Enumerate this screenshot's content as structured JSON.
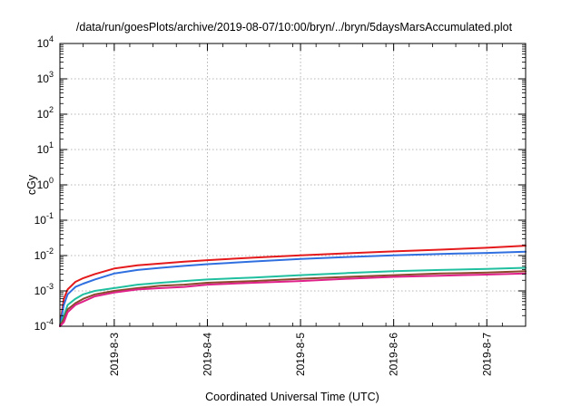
{
  "chart_data": {
    "type": "line",
    "title": "/data/run/goesPlots/archive/2019-08-07/10:00/bryn/../bryn/5daysMarsAccumulated.plot",
    "xlabel": "Coordinated Universal Time (UTC)",
    "ylabel": "cGy",
    "y_scale": "log",
    "ylim": [
      0.0001,
      10000
    ],
    "xlim": [
      "2019-08-02 10:00",
      "2019-08-07 10:00"
    ],
    "grid": true,
    "legend": "none",
    "x_ticks": [
      "2019-8-3",
      "2019-8-4",
      "2019-8-5",
      "2019-8-6",
      "2019-8-7"
    ],
    "y_ticks": [
      {
        "base": "10",
        "exp": "-4",
        "value": 0.0001
      },
      {
        "base": "10",
        "exp": "-3",
        "value": 0.001
      },
      {
        "base": "10",
        "exp": "-2",
        "value": 0.01
      },
      {
        "base": "10",
        "exp": "-1",
        "value": 0.1
      },
      {
        "base": "10",
        "exp": "0",
        "value": 1
      },
      {
        "base": "10",
        "exp": "1",
        "value": 10
      },
      {
        "base": "10",
        "exp": "2",
        "value": 100
      },
      {
        "base": "10",
        "exp": "3",
        "value": 1000
      },
      {
        "base": "10",
        "exp": "4",
        "value": 10000
      }
    ],
    "x": [
      "2019-08-02 10:00",
      "2019-08-02 11:00",
      "2019-08-02 12:00",
      "2019-08-02 14:00",
      "2019-08-02 16:00",
      "2019-08-02 19:00",
      "2019-08-03 00:00",
      "2019-08-03 06:00",
      "2019-08-03 12:00",
      "2019-08-03 18:00",
      "2019-08-04 00:00",
      "2019-08-04 12:00",
      "2019-08-05 00:00",
      "2019-08-05 12:00",
      "2019-08-06 00:00",
      "2019-08-06 12:00",
      "2019-08-07 00:00",
      "2019-08-07 10:00"
    ],
    "series": [
      {
        "color": "#e41a1c",
        "values": [
          0.0001,
          0.0006,
          0.0011,
          0.0018,
          0.0023,
          0.003,
          0.0043,
          0.0053,
          0.006,
          0.0067,
          0.0074,
          0.0088,
          0.0102,
          0.0116,
          0.0131,
          0.0147,
          0.0166,
          0.019
        ]
      },
      {
        "color": "#2f6fe0",
        "values": [
          0.0001,
          0.0004,
          0.0008,
          0.0013,
          0.0016,
          0.0021,
          0.0031,
          0.0039,
          0.0045,
          0.0051,
          0.0057,
          0.0068,
          0.008,
          0.0091,
          0.0102,
          0.0111,
          0.0119,
          0.0128
        ]
      },
      {
        "color": "#1fbf9f",
        "values": [
          0.0001,
          0.0002,
          0.0004,
          0.0006,
          0.0008,
          0.001,
          0.0012,
          0.0015,
          0.0017,
          0.0019,
          0.0021,
          0.0024,
          0.0028,
          0.0032,
          0.0036,
          0.0039,
          0.0042,
          0.0045
        ]
      },
      {
        "color": "#8b4a2b",
        "values": [
          0.0001,
          0.00016,
          0.0003,
          0.00045,
          0.0006,
          0.0008,
          0.001,
          0.0012,
          0.0014,
          0.0015,
          0.0017,
          0.0019,
          0.0022,
          0.0025,
          0.0028,
          0.0031,
          0.0033,
          0.0036
        ]
      },
      {
        "color": "#e0218a",
        "values": [
          0.0001,
          0.00013,
          0.00025,
          0.0004,
          0.0005,
          0.0007,
          0.0009,
          0.0011,
          0.0012,
          0.0013,
          0.0015,
          0.0017,
          0.0019,
          0.0022,
          0.0025,
          0.0027,
          0.0029,
          0.0031
        ]
      }
    ]
  }
}
